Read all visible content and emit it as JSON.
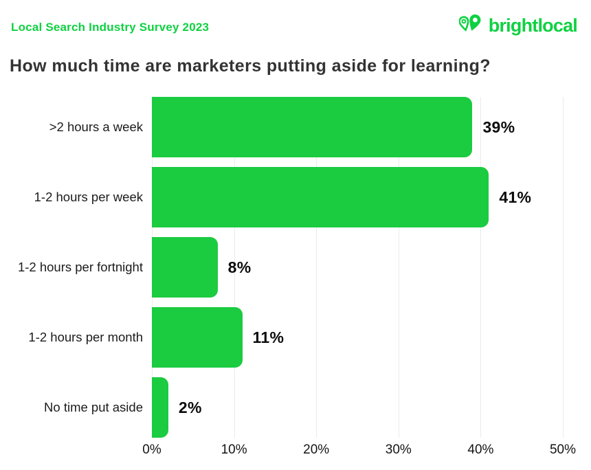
{
  "header": {
    "survey_label": "Local Search Industry Survey 2023",
    "logo_text": "brightlocal"
  },
  "title": "How much time are marketers putting aside for learning?",
  "chart_data": {
    "type": "bar",
    "orientation": "horizontal",
    "title": "How much time are marketers putting aside for learning?",
    "categories": [
      ">2 hours a week",
      "1-2 hours per week",
      "1-2 hours per fortnight",
      "1-2 hours per month",
      "No time put aside"
    ],
    "values": [
      39,
      41,
      8,
      11,
      2
    ],
    "value_labels": [
      "39%",
      "41%",
      "8%",
      "11%",
      "2%"
    ],
    "xlabel": "",
    "ylabel": "",
    "xlim": [
      0,
      50
    ],
    "x_ticks": [
      "0%",
      "10%",
      "20%",
      "30%",
      "40%",
      "50%"
    ],
    "grid": true,
    "legend": "none",
    "bar_color": "#1bcb40"
  },
  "colors": {
    "brand_green": "#0fd142",
    "bar_green": "#1bcb40",
    "title": "#333333",
    "gridline": "#ebebeb"
  }
}
